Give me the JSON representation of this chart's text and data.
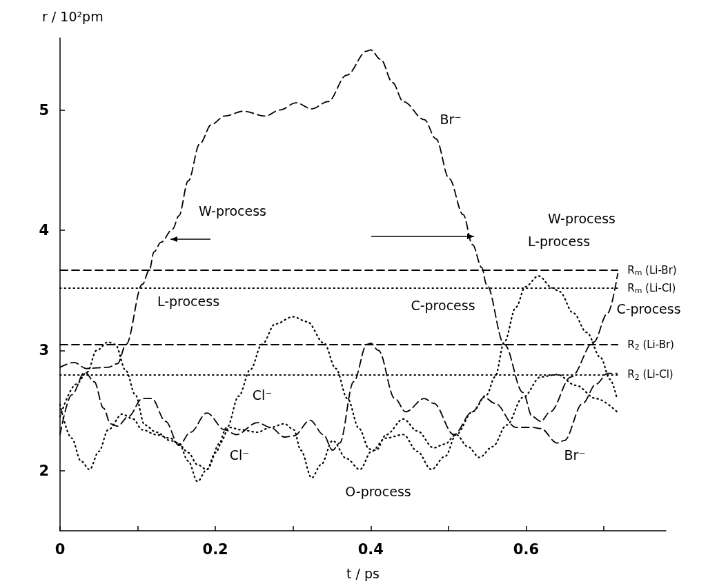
{
  "chart_data": {
    "type": "line",
    "xlabel": "t / ps",
    "ylabel": "r / 10²pm",
    "xlim": [
      0,
      0.78
    ],
    "ylim": [
      1.5,
      5.6
    ],
    "xticks": [
      0,
      {
        "value": 0.1,
        "label": null
      },
      0.2,
      {
        "value": 0.3,
        "label": null
      },
      0.4,
      {
        "value": 0.5,
        "label": null
      },
      0.6,
      {
        "value": 0.7,
        "label": null
      }
    ],
    "yticks": [
      2,
      3,
      4,
      5
    ],
    "grid": false,
    "series": [
      {
        "color": "#000000",
        "line_style": "dashed",
        "x": [
          0,
          0.018,
          0.034,
          0.062,
          0.074,
          0.085,
          0.106,
          0.115,
          0.121,
          0.13,
          0.145,
          0.153,
          0.165,
          0.18,
          0.195,
          0.212,
          0.236,
          0.264,
          0.283,
          0.304,
          0.324,
          0.345,
          0.369,
          0.395,
          0.4,
          0.413,
          0.428,
          0.442,
          0.469,
          0.484,
          0.501,
          0.519,
          0.531,
          0.543,
          0.549,
          0.572,
          0.596,
          0.608,
          0.619,
          0.631,
          0.658,
          0.687,
          0.705,
          0.718
        ],
        "values": [
          2.86,
          2.9,
          2.85,
          2.86,
          2.89,
          3.05,
          3.55,
          3.67,
          3.82,
          3.9,
          4.01,
          4.12,
          4.41,
          4.72,
          4.88,
          4.95,
          4.99,
          4.95,
          5.0,
          5.06,
          5.01,
          5.07,
          5.29,
          5.49,
          5.5,
          5.42,
          5.23,
          5.07,
          4.92,
          4.76,
          4.43,
          4.13,
          3.88,
          3.69,
          3.55,
          3.05,
          2.65,
          2.45,
          2.41,
          2.49,
          2.78,
          3.07,
          3.31,
          3.64
        ]
      },
      {
        "color": "#000000",
        "line_style": "dashed",
        "x": [
          0,
          0.015,
          0.032,
          0.044,
          0.056,
          0.065,
          0.074,
          0.088,
          0.106,
          0.118,
          0.136,
          0.153,
          0.168,
          0.189,
          0.212,
          0.227,
          0.254,
          0.271,
          0.289,
          0.301,
          0.322,
          0.339,
          0.351,
          0.36,
          0.378,
          0.395,
          0.4,
          0.41,
          0.431,
          0.445,
          0.469,
          0.481,
          0.507,
          0.531,
          0.546,
          0.56,
          0.587,
          0.608,
          0.619,
          0.64,
          0.649,
          0.673,
          0.69,
          0.705,
          0.717
        ],
        "values": [
          2.3,
          2.63,
          2.82,
          2.74,
          2.52,
          2.39,
          2.37,
          2.45,
          2.6,
          2.6,
          2.41,
          2.21,
          2.32,
          2.48,
          2.34,
          2.3,
          2.4,
          2.36,
          2.28,
          2.29,
          2.42,
          2.3,
          2.17,
          2.23,
          2.74,
          3.05,
          3.06,
          3.0,
          2.6,
          2.49,
          2.6,
          2.56,
          2.3,
          2.49,
          2.61,
          2.56,
          2.36,
          2.36,
          2.35,
          2.23,
          2.25,
          2.56,
          2.72,
          2.81,
          2.81
        ]
      },
      {
        "color": "#000000",
        "line_style": "dotted",
        "x": [
          0,
          0.015,
          0.027,
          0.038,
          0.05,
          0.062,
          0.08,
          0.094,
          0.106,
          0.124,
          0.142,
          0.153,
          0.165,
          0.177,
          0.189,
          0.2,
          0.215,
          0.23,
          0.245,
          0.26,
          0.277,
          0.3,
          0.318,
          0.34,
          0.355,
          0.37,
          0.385,
          0.398,
          0.407,
          0.42,
          0.442,
          0.46,
          0.481,
          0.495,
          0.51,
          0.525,
          0.54,
          0.557,
          0.575,
          0.596,
          0.619,
          0.64,
          0.664,
          0.69,
          0.717
        ],
        "values": [
          2.55,
          2.27,
          2.08,
          2.01,
          2.16,
          2.34,
          2.47,
          2.43,
          2.34,
          2.3,
          2.27,
          2.22,
          2.15,
          2.05,
          2.01,
          2.15,
          2.36,
          2.62,
          2.84,
          3.05,
          3.22,
          3.28,
          3.24,
          3.06,
          2.85,
          2.6,
          2.35,
          2.18,
          2.17,
          2.3,
          2.43,
          2.33,
          2.19,
          2.22,
          2.3,
          2.2,
          2.11,
          2.2,
          2.38,
          2.61,
          2.78,
          2.8,
          2.71,
          2.6,
          2.49
        ]
      },
      {
        "color": "#000000",
        "line_style": "dotted",
        "x": [
          0,
          0.021,
          0.035,
          0.047,
          0.062,
          0.071,
          0.085,
          0.097,
          0.109,
          0.124,
          0.142,
          0.153,
          0.165,
          0.177,
          0.189,
          0.206,
          0.218,
          0.233,
          0.254,
          0.271,
          0.289,
          0.301,
          0.31,
          0.324,
          0.336,
          0.351,
          0.369,
          0.386,
          0.401,
          0.419,
          0.442,
          0.46,
          0.478,
          0.496,
          0.51,
          0.531,
          0.549,
          0.56,
          0.572,
          0.587,
          0.599,
          0.616,
          0.634,
          0.643,
          0.661,
          0.678,
          0.696,
          0.708,
          0.717
        ],
        "values": [
          2.45,
          2.72,
          2.82,
          3.0,
          3.07,
          3.05,
          2.83,
          2.63,
          2.38,
          2.32,
          2.25,
          2.23,
          2.08,
          1.91,
          2.01,
          2.23,
          2.36,
          2.34,
          2.32,
          2.36,
          2.39,
          2.34,
          2.17,
          1.94,
          2.05,
          2.25,
          2.1,
          2.01,
          2.16,
          2.27,
          2.3,
          2.16,
          2.01,
          2.12,
          2.3,
          2.49,
          2.63,
          2.78,
          3.07,
          3.36,
          3.53,
          3.62,
          3.52,
          3.49,
          3.31,
          3.15,
          2.94,
          2.76,
          2.6
        ]
      }
    ],
    "ref_lines": [
      {
        "axis": "y",
        "value": 3.67,
        "label": "R$_{m}$ (Li-Br)",
        "line_style": "dashed"
      },
      {
        "axis": "y",
        "value": 3.52,
        "label": "R$_{m}$ (Li-Cl)",
        "line_style": "dotted"
      },
      {
        "axis": "y",
        "value": 3.05,
        "label": "R$_{2}$ (Li-Br)",
        "line_style": "dashed"
      },
      {
        "axis": "y",
        "value": 2.8,
        "label": "R$_{2}$ (Li-Cl)",
        "line_style": "dotted"
      }
    ],
    "annotations": [
      "W-process",
      "W-process",
      "L-process",
      "L-process",
      "C-process",
      "C-process",
      "O-process",
      "Br⁻",
      "Br⁻",
      "Cl⁻",
      "Cl⁻"
    ]
  }
}
